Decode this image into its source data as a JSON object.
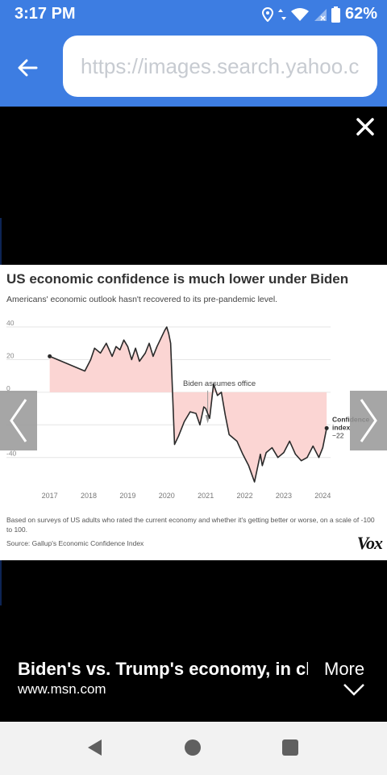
{
  "status_bar": {
    "time": "3:17 PM",
    "battery": "62%"
  },
  "url_bar": {
    "value": "https://images.search.yahoo.com"
  },
  "chart_card": {
    "title": "US economic confidence is much lower under Biden",
    "subtitle": "Americans' economic outlook hasn't recovered to its pre-pandemic level.",
    "footnote": "Based on surveys of US adults who rated the current economy and whether it's getting better or worse, on a scale of -100 to 100.",
    "source": "Source: Gallup's Economic Confidence Index",
    "logo": "Vox"
  },
  "chart_data": {
    "type": "line",
    "title": "US economic confidence is much lower under Biden",
    "ylim": [
      -55,
      42
    ],
    "yticks": [
      40,
      20,
      0,
      -20,
      -40
    ],
    "ytick_labels": [
      "40",
      "20",
      "0",
      "",
      "-40"
    ],
    "xlim": [
      2016.8,
      2024.2
    ],
    "xticks": [
      2017,
      2018,
      2019,
      2020,
      2021,
      2022,
      2023,
      2024
    ],
    "xtick_labels": [
      "2017",
      "2018",
      "2019",
      "2020",
      "2021",
      "2022",
      "2023",
      "2024"
    ],
    "annotation_biden": "Biden assumes office",
    "end_label": [
      "Confidence",
      "index",
      "−22"
    ],
    "series": [
      {
        "x": [
          2017.0,
          2017.5,
          2017.9,
          2018.05,
          2018.15,
          2018.3,
          2018.45,
          2018.6,
          2018.7,
          2018.8,
          2018.9,
          2019.0,
          2019.1,
          2019.2,
          2019.3,
          2019.45,
          2019.55,
          2019.65,
          2019.75,
          2019.85,
          2019.95,
          2020.0,
          2020.05,
          2020.1,
          2020.2,
          2020.3,
          2020.45,
          2020.6,
          2020.75,
          2020.85,
          2020.95,
          2021.0,
          2021.1,
          2021.2,
          2021.3,
          2021.4,
          2021.5,
          2021.6,
          2021.8,
          2021.95,
          2022.1,
          2022.25,
          2022.4,
          2022.45,
          2022.55,
          2022.7,
          2022.85,
          2023.0,
          2023.15,
          2023.3,
          2023.45,
          2023.6,
          2023.75,
          2023.9,
          2024.0,
          2024.1
        ],
        "y": [
          22,
          17,
          13,
          20,
          27,
          24,
          30,
          22,
          28,
          26,
          32,
          28,
          20,
          27,
          19,
          24,
          30,
          22,
          28,
          33,
          38,
          40,
          36,
          30,
          -32,
          -27,
          -18,
          -12,
          -13,
          -20,
          -9,
          -10,
          -16,
          5,
          -2,
          0,
          -14,
          -26,
          -30,
          -38,
          -45,
          -55,
          -38,
          -45,
          -37,
          -34,
          -40,
          -37,
          -30,
          -38,
          -42,
          -40,
          -33,
          -40,
          -34,
          -22
        ]
      }
    ],
    "shaded_regions": [
      {
        "x": [
          2017.0,
          2020.15
        ],
        "label": ""
      },
      {
        "x": [
          2020.15,
          2024.1
        ],
        "label": ""
      }
    ],
    "biden_x": 2021.05
  },
  "caption": {
    "title": "Biden's vs. Trump's economy, in charts",
    "domain": "www.msn.com",
    "more_label": "More"
  },
  "icons": {
    "back": "arrow-left-icon",
    "close": "close-icon",
    "prev": "chevron-left-icon",
    "next": "chevron-right-icon",
    "more": "chevron-down-icon"
  },
  "colors": {
    "accent": "#3d7de2",
    "shade": "#fbd5d3",
    "line": "#2a2a2a",
    "grid": "#e6e6e6"
  }
}
